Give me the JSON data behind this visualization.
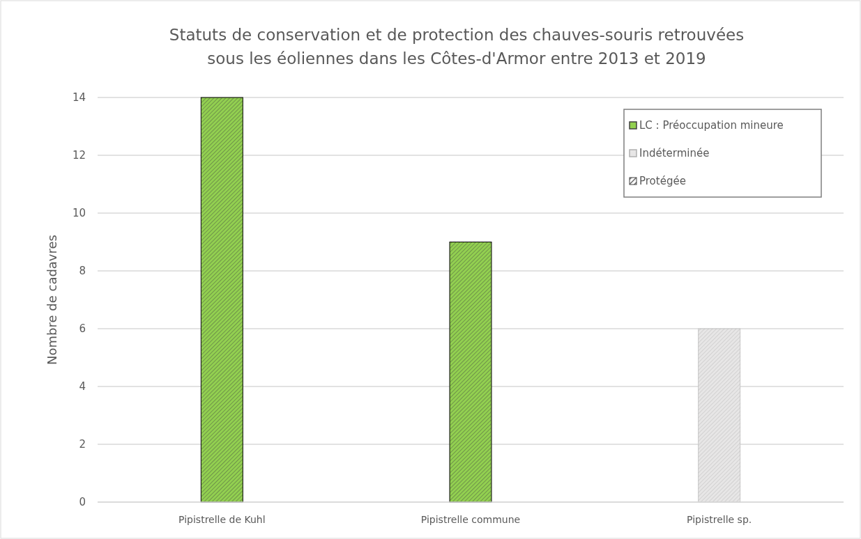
{
  "chart_data": {
    "type": "bar",
    "title": "Statuts de conservation et de protection des chauves-souris retrouvées\nsous les éoliennes dans les Côtes-d'Armor entre 2013 et 2019",
    "ylabel": "Nombre de cadavres",
    "categories": [
      "Pipistrelle de Kuhl",
      "Pipistrelle commune",
      "Pipistrelle sp."
    ],
    "series": [
      {
        "name": "LC : Préoccupation mineure",
        "color": "#92d050",
        "values": [
          14,
          9,
          null
        ]
      },
      {
        "name": "Indéterminée",
        "color": "#e7e6e6",
        "values": [
          null,
          null,
          6
        ]
      },
      {
        "name": "Protégée",
        "color": "#404040",
        "values": [
          null,
          null,
          null
        ]
      }
    ],
    "ylim": [
      0,
      14
    ],
    "yticks": [
      0,
      2,
      4,
      6,
      8,
      10,
      12,
      14
    ],
    "grid": "y",
    "legend": "top right"
  }
}
